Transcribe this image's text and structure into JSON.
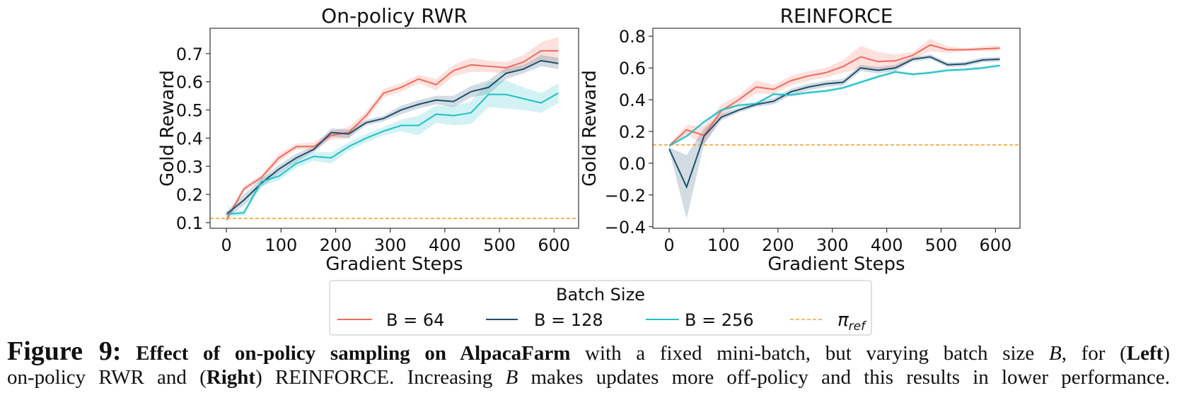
{
  "chart_data": [
    {
      "type": "line",
      "title": "On-policy RWR",
      "xlabel": "Gradient Steps",
      "ylabel": "Gold Reward",
      "xlim": [
        -30,
        645
      ],
      "ylim": [
        0.08,
        0.79
      ],
      "xticks": [
        0,
        100,
        200,
        300,
        400,
        500,
        600
      ],
      "yticks": [
        0.1,
        0.2,
        0.3,
        0.4,
        0.5,
        0.6,
        0.7
      ],
      "ytick_labels": [
        "0.1",
        "0.2",
        "0.3",
        "0.4",
        "0.5",
        "0.6",
        "0.7"
      ],
      "x": [
        0,
        32,
        64,
        96,
        128,
        160,
        192,
        224,
        256,
        288,
        320,
        352,
        384,
        416,
        448,
        480,
        512,
        544,
        576,
        608
      ],
      "series": [
        {
          "name": "B = 64",
          "values": [
            0.11,
            0.22,
            0.26,
            0.33,
            0.37,
            0.37,
            0.41,
            0.42,
            0.48,
            0.56,
            0.58,
            0.61,
            0.59,
            0.64,
            0.66,
            0.655,
            0.65,
            0.67,
            0.71,
            0.71
          ],
          "ci": [
            0.01,
            0.01,
            0.01,
            0.015,
            0.01,
            0.015,
            0.015,
            0.02,
            0.015,
            0.015,
            0.015,
            0.015,
            0.02,
            0.02,
            0.025,
            0.02,
            0.02,
            0.025,
            0.03,
            0.05
          ]
        },
        {
          "name": "B = 128",
          "values": [
            0.13,
            0.18,
            0.24,
            0.29,
            0.33,
            0.36,
            0.42,
            0.415,
            0.455,
            0.47,
            0.5,
            0.52,
            0.535,
            0.53,
            0.565,
            0.58,
            0.63,
            0.645,
            0.675,
            0.665
          ],
          "ci": [
            0.01,
            0.02,
            0.015,
            0.015,
            0.015,
            0.01,
            0.015,
            0.015,
            0.01,
            0.01,
            0.015,
            0.015,
            0.015,
            0.02,
            0.02,
            0.025,
            0.02,
            0.015,
            0.02,
            0.02
          ]
        },
        {
          "name": "B = 256",
          "values": [
            0.13,
            0.135,
            0.245,
            0.265,
            0.31,
            0.335,
            0.33,
            0.37,
            0.4,
            0.425,
            0.445,
            0.445,
            0.485,
            0.48,
            0.49,
            0.555,
            0.555,
            0.54,
            0.525,
            0.56
          ],
          "ci": [
            0.01,
            0.01,
            0.015,
            0.015,
            0.015,
            0.015,
            0.02,
            0.015,
            0.015,
            0.015,
            0.02,
            0.035,
            0.03,
            0.035,
            0.04,
            0.045,
            0.05,
            0.04,
            0.035,
            0.035
          ]
        }
      ],
      "reference": {
        "name": "π_ref",
        "value": 0.115
      }
    },
    {
      "type": "line",
      "title": "REINFORCE",
      "xlabel": "Gradient Steps",
      "ylabel": "Gold Reward",
      "xlim": [
        -30,
        645
      ],
      "ylim": [
        -0.41,
        0.85
      ],
      "xticks": [
        0,
        100,
        200,
        300,
        400,
        500,
        600
      ],
      "yticks": [
        -0.4,
        -0.2,
        0.0,
        0.2,
        0.4,
        0.6,
        0.8
      ],
      "ytick_labels": [
        "−0.4",
        "−0.2",
        "0.0",
        "0.2",
        "0.4",
        "0.6",
        "0.8"
      ],
      "x": [
        0,
        32,
        64,
        96,
        128,
        160,
        192,
        224,
        256,
        288,
        320,
        352,
        384,
        416,
        448,
        480,
        512,
        544,
        576,
        608
      ],
      "series": [
        {
          "name": "B = 64",
          "values": [
            0.11,
            0.21,
            0.175,
            0.33,
            0.4,
            0.48,
            0.465,
            0.52,
            0.55,
            0.57,
            0.61,
            0.67,
            0.64,
            0.645,
            0.68,
            0.745,
            0.715,
            0.715,
            0.72,
            0.725
          ],
          "ci": [
            0.01,
            0.03,
            0.06,
            0.04,
            0.03,
            0.04,
            0.03,
            0.03,
            0.03,
            0.03,
            0.04,
            0.07,
            0.06,
            0.04,
            0.02,
            0.04,
            0.02,
            0.01,
            0.015,
            0.015
          ]
        },
        {
          "name": "B = 128",
          "values": [
            0.09,
            -0.15,
            0.17,
            0.29,
            0.335,
            0.37,
            0.39,
            0.45,
            0.48,
            0.5,
            0.51,
            0.6,
            0.585,
            0.6,
            0.655,
            0.67,
            0.62,
            0.625,
            0.65,
            0.655
          ],
          "ci": [
            0.01,
            0.2,
            0.05,
            0.02,
            0.015,
            0.015,
            0.02,
            0.02,
            0.02,
            0.02,
            0.02,
            0.02,
            0.02,
            0.02,
            0.015,
            0.015,
            0.015,
            0.015,
            0.015,
            0.015
          ]
        },
        {
          "name": "B = 256",
          "values": [
            0.11,
            0.17,
            0.26,
            0.335,
            0.365,
            0.375,
            0.435,
            0.43,
            0.445,
            0.455,
            0.475,
            0.51,
            0.545,
            0.575,
            0.56,
            0.57,
            0.585,
            0.59,
            0.6,
            0.615
          ],
          "ci": [
            0.01,
            0.01,
            0.01,
            0.01,
            0.01,
            0.01,
            0.01,
            0.01,
            0.01,
            0.01,
            0.01,
            0.01,
            0.01,
            0.01,
            0.01,
            0.01,
            0.01,
            0.01,
            0.01,
            0.01
          ]
        }
      ],
      "reference": {
        "name": "π_ref",
        "value": 0.115
      }
    }
  ],
  "legend": {
    "title": "Batch Size",
    "placement": "bottom-center",
    "entries": [
      {
        "label": "B = 64",
        "color": "#f26b5b",
        "style": "solid"
      },
      {
        "label": "B = 128",
        "color": "#1d4f6e",
        "style": "solid"
      },
      {
        "label": "B = 256",
        "color": "#22c0c8",
        "style": "solid"
      },
      {
        "label_main": "π",
        "label_sub": "ref",
        "color": "#f0a532",
        "style": "dashed"
      }
    ]
  },
  "caption": {
    "figure_label": "Figure 9:",
    "bold_lead": "Effect of on-policy sampling on AlpacaFarm",
    "line1_rest": " with a fixed mini-batch, but varying batch size ",
    "var_b": "B",
    "line1_tail": ", for (",
    "left": "Left",
    "line1_end": ")",
    "line2_start": "on-policy RWR and (",
    "right": "Right",
    "line2_mid": ") REINFORCE. Increasing ",
    "line2_end": " makes updates more off-policy and this results in lower performance."
  }
}
